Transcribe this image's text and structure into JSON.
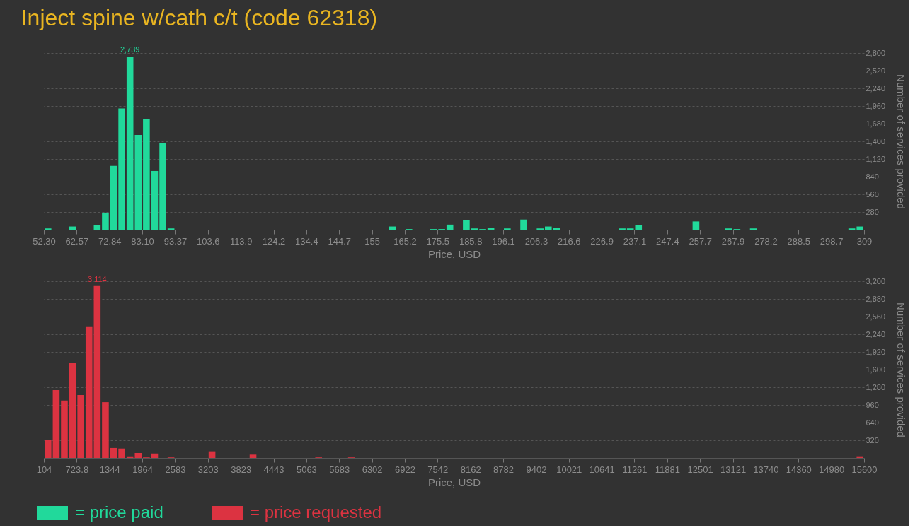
{
  "chart_data": [
    {
      "type": "histogram",
      "title": "Inject spine w/cath c/t (code 62318)",
      "xlabel": "Price, USD",
      "ylabel": "Number of services provided",
      "bins": [
        52.3,
        54.867,
        57.434,
        60.001,
        62.568,
        65.135,
        67.702,
        70.269,
        72.836,
        75.403,
        77.97,
        80.537,
        83.104,
        85.671,
        88.238,
        90.805,
        93.372,
        95.939,
        98.506,
        101.073,
        103.64,
        106.207,
        108.774,
        111.341,
        113.908,
        116.475,
        119.042,
        121.609,
        124.176,
        126.743,
        129.31,
        131.877,
        134.444,
        137.011,
        139.578,
        142.145,
        144.712,
        147.279,
        149.846,
        152.413,
        154.98,
        157.547,
        160.114,
        162.681,
        165.248,
        167.815,
        170.382,
        172.949,
        175.516,
        178.083,
        180.65,
        183.217,
        185.784,
        188.351,
        190.918,
        193.485,
        196.052,
        198.619,
        201.186,
        203.753,
        206.32,
        208.887,
        211.454,
        214.021,
        216.588,
        219.155,
        221.722,
        224.289,
        226.856,
        229.423,
        231.99,
        234.557,
        237.124,
        239.691,
        242.258,
        244.825,
        247.392,
        249.959,
        252.526,
        255.093,
        257.66,
        260.227,
        262.794,
        265.361,
        267.928,
        270.495,
        273.062,
        275.629,
        278.196,
        280.763,
        283.33,
        285.897,
        288.464,
        291.031,
        293.598,
        296.165,
        298.732,
        301.299,
        303.866,
        306.433,
        309
      ],
      "series": [
        {
          "name": "= price paid",
          "color": "#21d99b",
          "values": [
            20,
            0,
            0,
            50,
            0,
            0,
            70,
            270,
            1010,
            1920,
            2739,
            1500,
            1750,
            930,
            1370,
            20,
            0,
            0,
            0,
            0,
            0,
            0,
            0,
            0,
            0,
            0,
            0,
            0,
            0,
            0,
            0,
            0,
            0,
            0,
            0,
            0,
            0,
            0,
            0,
            0,
            0,
            0,
            50,
            0,
            10,
            0,
            0,
            10,
            10,
            80,
            0,
            150,
            20,
            10,
            30,
            0,
            20,
            0,
            160,
            0,
            20,
            50,
            30,
            0,
            0,
            0,
            0,
            0,
            0,
            0,
            20,
            20,
            70,
            0,
            0,
            0,
            0,
            0,
            0,
            130,
            0,
            0,
            0,
            20,
            10,
            0,
            20,
            0,
            0,
            0,
            0,
            0,
            0,
            0,
            0,
            0,
            0,
            0,
            20,
            50
          ],
          "value_labels": [
            null,
            null,
            null,
            null,
            null,
            null,
            null,
            null,
            null,
            null,
            "2,739",
            null,
            null,
            null,
            null,
            null,
            null,
            null,
            null,
            null,
            null,
            null,
            null,
            null,
            null,
            null,
            null,
            null,
            null,
            null,
            null,
            null,
            null,
            null,
            null,
            null,
            null,
            null,
            null,
            null,
            null,
            null,
            null,
            null,
            null,
            null,
            null,
            null,
            null,
            null,
            null,
            null,
            null,
            null,
            null,
            null,
            null,
            null,
            null,
            null,
            null,
            null,
            null,
            null,
            null,
            null,
            null,
            null,
            null,
            null,
            null,
            null,
            null,
            null,
            null,
            null,
            null,
            null,
            null,
            null,
            null,
            null,
            null,
            null,
            null,
            null,
            null,
            null,
            null,
            null,
            null,
            null,
            null,
            null,
            null,
            null,
            null,
            null,
            null,
            null
          ]
        }
      ],
      "xlim": [
        52.3,
        309
      ],
      "xticks": [
        {
          "value": 52.3,
          "label": "52.30"
        },
        {
          "value": 62.568,
          "label": "62.57"
        },
        {
          "value": 72.836,
          "label": "72.84"
        },
        {
          "value": 83.104,
          "label": "83.10"
        },
        {
          "value": 93.372,
          "label": "93.37"
        },
        {
          "value": 103.64,
          "label": "103.6"
        },
        {
          "value": 113.908,
          "label": "113.9"
        },
        {
          "value": 124.176,
          "label": "124.2"
        },
        {
          "value": 134.444,
          "label": "134.4"
        },
        {
          "value": 144.712,
          "label": "144.7"
        },
        {
          "value": 154.98,
          "label": "155"
        },
        {
          "value": 165.248,
          "label": "165.2"
        },
        {
          "value": 175.516,
          "label": "175.5"
        },
        {
          "value": 185.784,
          "label": "185.8"
        },
        {
          "value": 196.052,
          "label": "196.1"
        },
        {
          "value": 206.32,
          "label": "206.3"
        },
        {
          "value": 216.588,
          "label": "216.6"
        },
        {
          "value": 226.856,
          "label": "226.9"
        },
        {
          "value": 237.124,
          "label": "237.1"
        },
        {
          "value": 247.392,
          "label": "247.4"
        },
        {
          "value": 257.66,
          "label": "257.7"
        },
        {
          "value": 267.928,
          "label": "267.9"
        },
        {
          "value": 278.196,
          "label": "278.2"
        },
        {
          "value": 288.464,
          "label": "288.5"
        },
        {
          "value": 298.732,
          "label": "298.7"
        },
        309
      ],
      "ylim": [
        0,
        2800
      ],
      "yticks": [
        280,
        560,
        840,
        {
          "value": 1120,
          "label": "1,120"
        },
        {
          "value": 1400,
          "label": "1,400"
        },
        {
          "value": 1680,
          "label": "1,680"
        },
        {
          "value": 1960,
          "label": "1,960"
        },
        {
          "value": 2240,
          "label": "2,240"
        },
        {
          "value": 2520,
          "label": "2,520"
        },
        {
          "value": 2800,
          "label": "2,800"
        }
      ],
      "grid": "y",
      "legend": "bottom"
    },
    {
      "type": "histogram",
      "xlabel": "Price, USD",
      "ylabel": "Number of services provided",
      "bins": [
        104,
        258.96,
        413.92,
        568.88,
        723.84,
        878.8,
        1033.76,
        1188.72,
        1343.68,
        1498.64,
        1653.6,
        1808.56,
        1963.52,
        2118.48,
        2273.44,
        2428.4,
        2583.36,
        2738.32,
        2893.28,
        3048.24,
        3203.2,
        3358.16,
        3513.12,
        3668.08,
        3823.04,
        3978,
        4132.96,
        4287.92,
        4442.88,
        4597.84,
        4752.8,
        4907.76,
        5062.72,
        5217.68,
        5372.64,
        5527.6,
        5682.56,
        5837.52,
        5992.48,
        6147.44,
        6302.4,
        6457.36,
        6612.32,
        6767.28,
        6922.24,
        7077.2,
        7232.16,
        7387.12,
        7542.08,
        7697.04,
        7852,
        8006.96,
        8161.92,
        8316.88,
        8471.84,
        8626.8,
        8781.76,
        8936.72,
        9091.68,
        9246.64,
        9401.6,
        9556.56,
        9711.52,
        9866.48,
        10021.44,
        10176.4,
        10331.36,
        10486.32,
        10641.28,
        10796.24,
        10951.2,
        11106.16,
        11261.12,
        11416.08,
        11571.04,
        11726,
        11880.96,
        12035.92,
        12190.88,
        12345.84,
        12500.8,
        12655.76,
        12810.72,
        12965.68,
        13120.64,
        13275.6,
        13430.56,
        13585.52,
        13740.48,
        13895.44,
        14050.4,
        14205.36,
        14360.32,
        14515.28,
        14670.24,
        14825.2,
        14980.16,
        15135.12,
        15290.08,
        15445.04,
        15600
      ],
      "series": [
        {
          "name": "= price requested",
          "color": "#dc3341",
          "values": [
            320,
            1230,
            1040,
            1720,
            1140,
            2370,
            3114,
            1010,
            180,
            170,
            30,
            90,
            10,
            80,
            0,
            10,
            0,
            0,
            0,
            0,
            120,
            0,
            0,
            0,
            0,
            60,
            0,
            0,
            0,
            0,
            0,
            0,
            0,
            10,
            0,
            0,
            0,
            10,
            0,
            0,
            0,
            0,
            0,
            0,
            0,
            0,
            0,
            0,
            0,
            0,
            0,
            0,
            0,
            0,
            0,
            0,
            0,
            0,
            0,
            0,
            0,
            0,
            0,
            0,
            0,
            0,
            0,
            0,
            0,
            0,
            0,
            0,
            0,
            0,
            0,
            0,
            0,
            0,
            0,
            0,
            0,
            0,
            0,
            0,
            0,
            0,
            0,
            0,
            0,
            0,
            0,
            0,
            0,
            0,
            0,
            0,
            0,
            0,
            0,
            30
          ],
          "value_labels": [
            null,
            null,
            null,
            null,
            null,
            null,
            "3,114",
            null,
            null,
            null,
            null,
            null,
            null,
            null,
            null,
            null,
            null,
            null,
            null,
            null,
            null,
            null,
            null,
            null,
            null,
            null,
            null,
            null,
            null,
            null,
            null,
            null,
            null,
            null,
            null,
            null,
            null,
            null,
            null,
            null,
            null,
            null,
            null,
            null,
            null,
            null,
            null,
            null,
            null,
            null,
            null,
            null,
            null,
            null,
            null,
            null,
            null,
            null,
            null,
            null,
            null,
            null,
            null,
            null,
            null,
            null,
            null,
            null,
            null,
            null,
            null,
            null,
            null,
            null,
            null,
            null,
            null,
            null,
            null,
            null,
            null,
            null,
            null,
            null,
            null,
            null,
            null,
            null,
            null,
            null,
            null,
            null,
            null,
            null,
            null,
            null,
            null,
            null,
            null,
            null
          ]
        }
      ],
      "xlim": [
        104,
        15600
      ],
      "xticks": [
        104,
        {
          "value": 723.84,
          "label": "723.8"
        },
        {
          "value": 1343.68,
          "label": "1344"
        },
        {
          "value": 1963.52,
          "label": "1964"
        },
        {
          "value": 2583.36,
          "label": "2583"
        },
        {
          "value": 3203.2,
          "label": "3203"
        },
        {
          "value": 3823.04,
          "label": "3823"
        },
        {
          "value": 4442.88,
          "label": "4443"
        },
        {
          "value": 5062.72,
          "label": "5063"
        },
        {
          "value": 5682.56,
          "label": "5683"
        },
        {
          "value": 6302.4,
          "label": "6302"
        },
        {
          "value": 6922.24,
          "label": "6922"
        },
        {
          "value": 7542.08,
          "label": "7542"
        },
        {
          "value": 8161.92,
          "label": "8162"
        },
        {
          "value": 8781.76,
          "label": "8782"
        },
        {
          "value": 9401.6,
          "label": "9402"
        },
        {
          "value": 10021.44,
          "label": "10021"
        },
        {
          "value": 10641.28,
          "label": "10641"
        },
        {
          "value": 11261.12,
          "label": "11261"
        },
        {
          "value": 11880.96,
          "label": "11881"
        },
        {
          "value": 12500.8,
          "label": "12501"
        },
        {
          "value": 13120.64,
          "label": "13121"
        },
        {
          "value": 13740.48,
          "label": "13740"
        },
        {
          "value": 14360.32,
          "label": "14360"
        },
        {
          "value": 14980.16,
          "label": "14980"
        },
        15600
      ],
      "ylim": [
        0,
        3200
      ],
      "yticks": [
        320,
        640,
        960,
        {
          "value": 1280,
          "label": "1,280"
        },
        {
          "value": 1600,
          "label": "1,600"
        },
        {
          "value": 1920,
          "label": "1,920"
        },
        {
          "value": 2240,
          "label": "2,240"
        },
        {
          "value": 2560,
          "label": "2,560"
        },
        {
          "value": 2880,
          "label": "2,880"
        },
        {
          "value": 3200,
          "label": "3,200"
        }
      ],
      "grid": "y",
      "legend": "bottom"
    }
  ]
}
